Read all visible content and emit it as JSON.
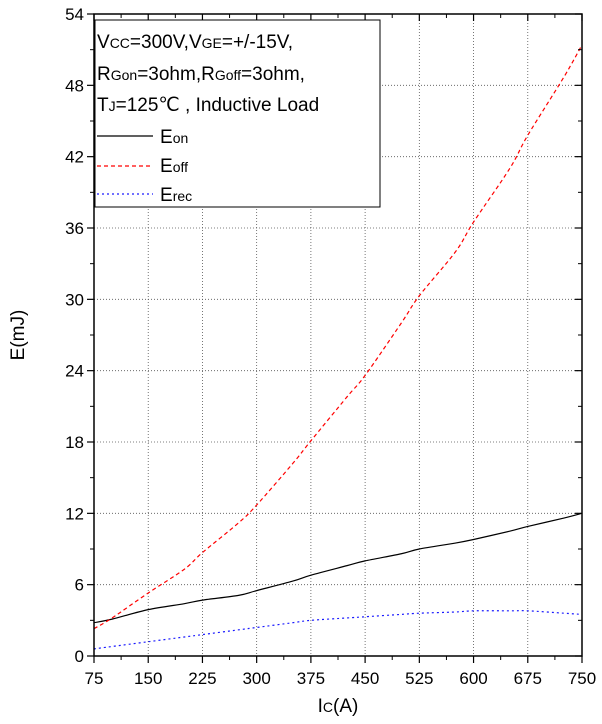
{
  "chart_data": {
    "type": "line",
    "xlabel_main": "I",
    "xlabel_sub": "C",
    "xlabel_unit": "(A)",
    "ylabel": "E(mJ)",
    "xlim": [
      75,
      750
    ],
    "ylim": [
      0,
      54
    ],
    "x_ticks": [
      "75",
      "150",
      "225",
      "300",
      "375",
      "450",
      "525",
      "600",
      "675",
      "750"
    ],
    "y_ticks": [
      "0",
      "6",
      "12",
      "18",
      "24",
      "30",
      "36",
      "42",
      "48",
      "54"
    ],
    "grid": true,
    "legend_position": "top-left",
    "conditions": {
      "line1": {
        "v1": "V",
        "v1s": "CC",
        "v1r": "=300V,",
        "v2": "V",
        "v2s": "GE",
        "v2r": "=+/-15V,"
      },
      "line2": {
        "r1": "R",
        "r1s": "Gon",
        "r1r": "=3ohm,",
        "r2": "R",
        "r2s": "Goff",
        "r2r": "=3ohm,"
      },
      "line3": {
        "t": "T",
        "ts": "J",
        "tr": "=125℃ , Inductive Load"
      }
    },
    "series": [
      {
        "name_main": "E",
        "name_sub": "on",
        "color": "#000000",
        "dash": "",
        "x": [
          75,
          100,
          150,
          200,
          225,
          275,
          300,
          350,
          375,
          425,
          450,
          500,
          525,
          575,
          600,
          650,
          675,
          725,
          750
        ],
        "y": [
          2.8,
          3.1,
          3.9,
          4.4,
          4.7,
          5.1,
          5.5,
          6.3,
          6.8,
          7.6,
          8.0,
          8.6,
          9.0,
          9.5,
          9.8,
          10.5,
          10.9,
          11.6,
          12.0
        ]
      },
      {
        "name_main": "E",
        "name_sub": "off",
        "color": "#ff0000",
        "dash": "4,3",
        "x": [
          75,
          100,
          150,
          200,
          225,
          275,
          300,
          350,
          375,
          425,
          450,
          500,
          525,
          575,
          600,
          650,
          675,
          725,
          750
        ],
        "y": [
          2.3,
          3.2,
          5.3,
          7.3,
          8.7,
          11.2,
          12.7,
          16.2,
          18.1,
          21.8,
          23.6,
          28.0,
          30.3,
          34.0,
          36.5,
          41.0,
          43.8,
          48.7,
          51.4
        ]
      },
      {
        "name_main": "E",
        "name_sub": "rec",
        "color": "#1a1aff",
        "dash": "2,3",
        "x": [
          75,
          100,
          150,
          200,
          225,
          275,
          300,
          350,
          375,
          425,
          450,
          500,
          525,
          575,
          600,
          650,
          675,
          725,
          750
        ],
        "y": [
          0.6,
          0.8,
          1.2,
          1.6,
          1.8,
          2.2,
          2.4,
          2.8,
          3.0,
          3.2,
          3.3,
          3.5,
          3.6,
          3.7,
          3.8,
          3.8,
          3.8,
          3.6,
          3.5
        ]
      }
    ]
  }
}
